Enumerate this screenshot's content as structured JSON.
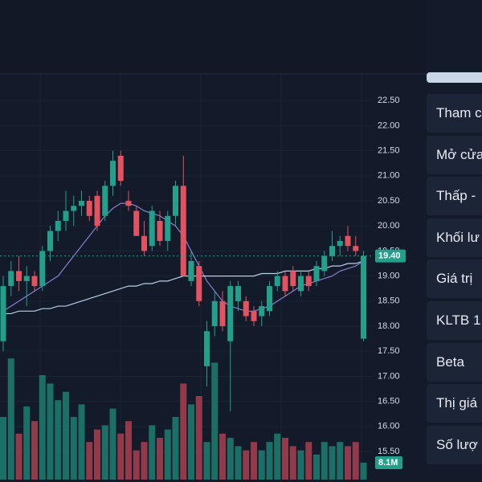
{
  "chart_data": {
    "type": "candlestick",
    "up_color": "#22a08c",
    "down_color": "#e2525f",
    "up_volume_color": "#1c6f66",
    "down_volume_color": "#92394a",
    "ylim": [
      15.3,
      22.8
    ],
    "yticks": [
      {
        "value": 22.5,
        "label": "22.50"
      },
      {
        "value": 22,
        "label": "22.00"
      },
      {
        "value": 21.5,
        "label": "21.50"
      },
      {
        "value": 21,
        "label": "21.00"
      },
      {
        "value": 20.5,
        "label": "20.50"
      },
      {
        "value": 20,
        "label": "20.00"
      },
      {
        "value": 19.5,
        "label": "19.50"
      },
      {
        "value": 19,
        "label": "19.00"
      },
      {
        "value": 18.5,
        "label": "18.50"
      },
      {
        "value": 18,
        "label": "18.00"
      },
      {
        "value": 17.5,
        "label": "17.50"
      },
      {
        "value": 17,
        "label": "17.00"
      },
      {
        "value": 16.5,
        "label": "16.50"
      },
      {
        "value": 16,
        "label": "16.00"
      },
      {
        "value": 15.5,
        "label": "15.50"
      }
    ],
    "grid": true,
    "open": [
      17.7,
      18.8,
      19.1,
      18.9,
      19.0,
      18.8,
      19.5,
      19.9,
      20.1,
      20.3,
      20.4,
      20.5,
      20.6,
      20.2,
      20.8,
      21.4,
      20.5,
      20.3,
      19.8,
      19.6,
      20.1,
      19.7,
      20.2,
      20.8,
      18.9,
      19.2,
      17.2,
      18.0,
      18.5,
      17.7,
      18.5,
      18.5,
      18.3,
      18.2,
      18.3,
      18.8,
      19.0,
      19.1,
      18.7,
      19.0,
      18.9,
      19.1,
      19.4,
      19.6,
      19.8,
      19.6,
      17.75
    ],
    "high": [
      19.0,
      19.3,
      19.4,
      19.2,
      19.1,
      19.6,
      20.0,
      20.3,
      20.7,
      20.6,
      20.7,
      20.6,
      20.7,
      20.9,
      21.5,
      21.5,
      20.7,
      20.4,
      20.1,
      20.4,
      20.3,
      20.3,
      20.9,
      21.4,
      19.5,
      19.3,
      18.1,
      18.7,
      18.7,
      18.9,
      18.9,
      18.6,
      18.4,
      18.5,
      18.9,
      19.1,
      19.1,
      19.2,
      19.1,
      19.1,
      19.3,
      19.5,
      19.9,
      19.8,
      20.0,
      19.8,
      19.5
    ],
    "low": [
      17.5,
      18.6,
      18.7,
      18.4,
      18.7,
      18.7,
      19.3,
      19.7,
      19.9,
      20.0,
      20.2,
      20.1,
      19.9,
      20.1,
      20.6,
      20.8,
      20.3,
      19.8,
      19.4,
      19.5,
      19.6,
      19.5,
      20.0,
      19.0,
      18.8,
      18.4,
      16.8,
      17.8,
      17.9,
      16.3,
      18.3,
      18.1,
      18.0,
      18.0,
      18.2,
      18.7,
      18.6,
      18.7,
      18.6,
      18.7,
      18.8,
      19.0,
      19.3,
      19.4,
      19.5,
      19.4,
      17.7
    ],
    "close": [
      18.8,
      19.1,
      18.9,
      19.0,
      18.8,
      19.5,
      19.9,
      20.1,
      20.3,
      20.4,
      20.5,
      20.2,
      20.0,
      20.8,
      21.3,
      20.9,
      20.4,
      19.8,
      19.5,
      20.3,
      19.7,
      20.2,
      20.8,
      19.0,
      19.3,
      18.5,
      17.9,
      18.5,
      18.0,
      18.8,
      18.8,
      18.2,
      18.1,
      18.4,
      18.8,
      19.0,
      18.7,
      18.8,
      19.0,
      18.8,
      19.2,
      19.4,
      19.6,
      19.7,
      19.6,
      19.5,
      19.4
    ],
    "volume": [
      30,
      58,
      22,
      35,
      28,
      50,
      46,
      38,
      42,
      30,
      36,
      18,
      24,
      26,
      34,
      22,
      28,
      14,
      18,
      26,
      20,
      24,
      30,
      46,
      36,
      40,
      18,
      56,
      22,
      20,
      16,
      14,
      18,
      14,
      18,
      22,
      20,
      16,
      14,
      18,
      12,
      18,
      16,
      18,
      16,
      18,
      8.1
    ],
    "volume_label": "8.1M",
    "vlim": [
      0,
      60
    ],
    "ma_series": [
      {
        "color": "#8a7fd0",
        "values": [
          18.3,
          18.4,
          18.5,
          18.6,
          18.7,
          18.8,
          18.9,
          19.0,
          19.2,
          19.4,
          19.6,
          19.8,
          20.0,
          20.2,
          20.35,
          20.45,
          20.45,
          20.4,
          20.3,
          20.25,
          20.2,
          20.1,
          20.0,
          19.8,
          19.5,
          19.2,
          18.9,
          18.7,
          18.5,
          18.4,
          18.35,
          18.3,
          18.3,
          18.35,
          18.4,
          18.5,
          18.6,
          18.7,
          18.8,
          18.85,
          18.9,
          18.95,
          19.0,
          19.1,
          19.15,
          19.2,
          19.3
        ]
      },
      {
        "color": "#b8cfe6",
        "values": [
          18.25,
          18.25,
          18.3,
          18.3,
          18.3,
          18.35,
          18.35,
          18.4,
          18.4,
          18.45,
          18.5,
          18.55,
          18.6,
          18.65,
          18.7,
          18.75,
          18.8,
          18.8,
          18.85,
          18.85,
          18.9,
          18.9,
          18.95,
          19.0,
          19.0,
          19.0,
          19.0,
          19.0,
          19.0,
          19.0,
          19.0,
          19.0,
          19.0,
          19.05,
          19.05,
          19.05,
          19.1,
          19.1,
          19.1,
          19.1,
          19.15,
          19.15,
          19.2,
          19.2,
          19.25,
          19.25,
          19.3
        ]
      }
    ],
    "last_price": 19.4,
    "last_price_label": "19.40"
  },
  "panel": {
    "rows": [
      "Tham c",
      "Mở cửa",
      "Thấp -",
      "Khối lư",
      "Giá trị",
      "KLTB 1",
      "Beta",
      "Thị giá",
      "Số lượ"
    ]
  }
}
